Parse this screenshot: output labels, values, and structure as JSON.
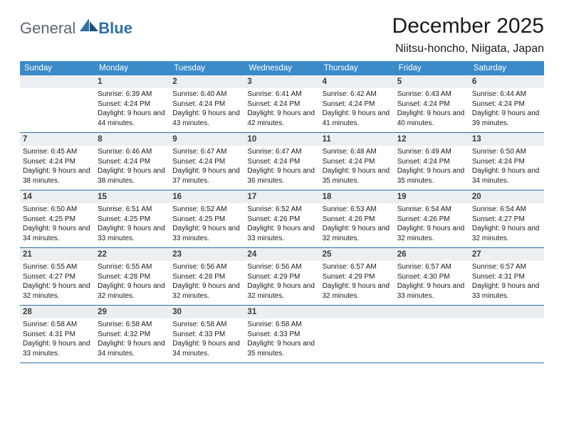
{
  "logo": {
    "text1": "General",
    "text2": "Blue"
  },
  "title": "December 2025",
  "location": "Niitsu-honcho, Niigata, Japan",
  "weekdays": [
    "Sunday",
    "Monday",
    "Tuesday",
    "Wednesday",
    "Thursday",
    "Friday",
    "Saturday"
  ],
  "colors": {
    "header_bg": "#3b8bc9",
    "header_text": "#ffffff",
    "daynum_bg": "#eceff1",
    "rule": "#2c6fa8",
    "logo_gray": "#5c6670",
    "logo_blue": "#2c6fa8"
  },
  "typography": {
    "title_fontsize": 30,
    "location_fontsize": 16,
    "weekday_fontsize": 11.5,
    "daynum_fontsize": 11.5,
    "body_fontsize": 10
  },
  "layout": {
    "columns": 7,
    "rows": 5,
    "leading_blanks": 1
  },
  "days": [
    {
      "n": 1,
      "sunrise": "6:39 AM",
      "sunset": "4:24 PM",
      "daylight": "9 hours and 44 minutes."
    },
    {
      "n": 2,
      "sunrise": "6:40 AM",
      "sunset": "4:24 PM",
      "daylight": "9 hours and 43 minutes."
    },
    {
      "n": 3,
      "sunrise": "6:41 AM",
      "sunset": "4:24 PM",
      "daylight": "9 hours and 42 minutes."
    },
    {
      "n": 4,
      "sunrise": "6:42 AM",
      "sunset": "4:24 PM",
      "daylight": "9 hours and 41 minutes."
    },
    {
      "n": 5,
      "sunrise": "6:43 AM",
      "sunset": "4:24 PM",
      "daylight": "9 hours and 40 minutes."
    },
    {
      "n": 6,
      "sunrise": "6:44 AM",
      "sunset": "4:24 PM",
      "daylight": "9 hours and 39 minutes."
    },
    {
      "n": 7,
      "sunrise": "6:45 AM",
      "sunset": "4:24 PM",
      "daylight": "9 hours and 38 minutes."
    },
    {
      "n": 8,
      "sunrise": "6:46 AM",
      "sunset": "4:24 PM",
      "daylight": "9 hours and 38 minutes."
    },
    {
      "n": 9,
      "sunrise": "6:47 AM",
      "sunset": "4:24 PM",
      "daylight": "9 hours and 37 minutes."
    },
    {
      "n": 10,
      "sunrise": "6:47 AM",
      "sunset": "4:24 PM",
      "daylight": "9 hours and 36 minutes."
    },
    {
      "n": 11,
      "sunrise": "6:48 AM",
      "sunset": "4:24 PM",
      "daylight": "9 hours and 35 minutes."
    },
    {
      "n": 12,
      "sunrise": "6:49 AM",
      "sunset": "4:24 PM",
      "daylight": "9 hours and 35 minutes."
    },
    {
      "n": 13,
      "sunrise": "6:50 AM",
      "sunset": "4:24 PM",
      "daylight": "9 hours and 34 minutes."
    },
    {
      "n": 14,
      "sunrise": "6:50 AM",
      "sunset": "4:25 PM",
      "daylight": "9 hours and 34 minutes."
    },
    {
      "n": 15,
      "sunrise": "6:51 AM",
      "sunset": "4:25 PM",
      "daylight": "9 hours and 33 minutes."
    },
    {
      "n": 16,
      "sunrise": "6:52 AM",
      "sunset": "4:25 PM",
      "daylight": "9 hours and 33 minutes."
    },
    {
      "n": 17,
      "sunrise": "6:52 AM",
      "sunset": "4:26 PM",
      "daylight": "9 hours and 33 minutes."
    },
    {
      "n": 18,
      "sunrise": "6:53 AM",
      "sunset": "4:26 PM",
      "daylight": "9 hours and 32 minutes."
    },
    {
      "n": 19,
      "sunrise": "6:54 AM",
      "sunset": "4:26 PM",
      "daylight": "9 hours and 32 minutes."
    },
    {
      "n": 20,
      "sunrise": "6:54 AM",
      "sunset": "4:27 PM",
      "daylight": "9 hours and 32 minutes."
    },
    {
      "n": 21,
      "sunrise": "6:55 AM",
      "sunset": "4:27 PM",
      "daylight": "9 hours and 32 minutes."
    },
    {
      "n": 22,
      "sunrise": "6:55 AM",
      "sunset": "4:28 PM",
      "daylight": "9 hours and 32 minutes."
    },
    {
      "n": 23,
      "sunrise": "6:56 AM",
      "sunset": "4:28 PM",
      "daylight": "9 hours and 32 minutes."
    },
    {
      "n": 24,
      "sunrise": "6:56 AM",
      "sunset": "4:29 PM",
      "daylight": "9 hours and 32 minutes."
    },
    {
      "n": 25,
      "sunrise": "6:57 AM",
      "sunset": "4:29 PM",
      "daylight": "9 hours and 32 minutes."
    },
    {
      "n": 26,
      "sunrise": "6:57 AM",
      "sunset": "4:30 PM",
      "daylight": "9 hours and 33 minutes."
    },
    {
      "n": 27,
      "sunrise": "6:57 AM",
      "sunset": "4:31 PM",
      "daylight": "9 hours and 33 minutes."
    },
    {
      "n": 28,
      "sunrise": "6:58 AM",
      "sunset": "4:31 PM",
      "daylight": "9 hours and 33 minutes."
    },
    {
      "n": 29,
      "sunrise": "6:58 AM",
      "sunset": "4:32 PM",
      "daylight": "9 hours and 34 minutes."
    },
    {
      "n": 30,
      "sunrise": "6:58 AM",
      "sunset": "4:33 PM",
      "daylight": "9 hours and 34 minutes."
    },
    {
      "n": 31,
      "sunrise": "6:58 AM",
      "sunset": "4:33 PM",
      "daylight": "9 hours and 35 minutes."
    }
  ],
  "labels": {
    "sunrise": "Sunrise:",
    "sunset": "Sunset:",
    "daylight": "Daylight:"
  }
}
